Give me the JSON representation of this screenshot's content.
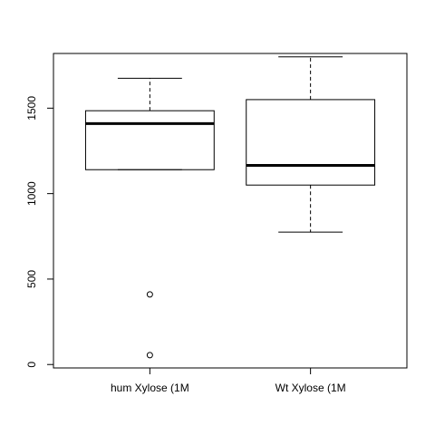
{
  "chart_data": {
    "type": "boxplot",
    "title": "",
    "xlabel": "",
    "ylabel": "",
    "ylim": [
      -20,
      1820
    ],
    "y_ticks": [
      0,
      500,
      1000,
      1500
    ],
    "grid": false,
    "categories": [
      "hum Xylose (1M",
      "Wt Xylose (1M"
    ],
    "boxes": [
      {
        "category": "hum Xylose (1M",
        "whisker_low": 1140,
        "q1": 1140,
        "median": 1410,
        "q3": 1485,
        "whisker_high": 1675,
        "outliers": [
          410,
          55
        ]
      },
      {
        "category": "Wt Xylose (1M",
        "whisker_low": 775,
        "q1": 1050,
        "median": 1165,
        "q3": 1550,
        "whisker_high": 1800,
        "outliers": []
      }
    ]
  }
}
